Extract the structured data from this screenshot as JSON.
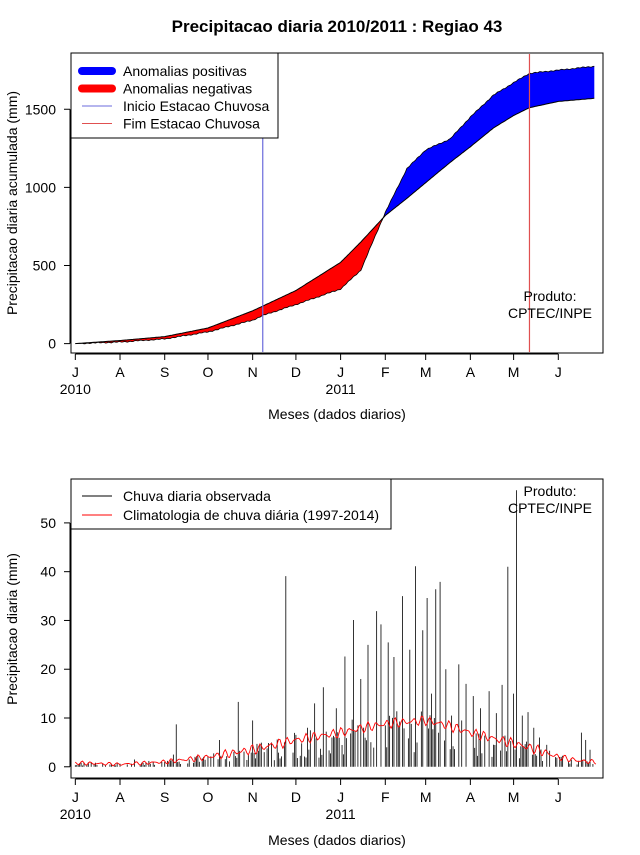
{
  "page_title": "Precipitacao diaria 2010/2011 : Regiao 43",
  "colors": {
    "positive": "#0000ff",
    "negative": "#ff0000",
    "start_line": "#6b6bdc",
    "end_line": "#e05050",
    "observed": "#000000",
    "climatology": "#ff0000"
  },
  "chart_data": [
    {
      "type": "area",
      "title": "Precipitacao diaria 2010/2011 : Regiao 43",
      "xlabel": "Meses (dados diarios)",
      "ylabel": "Precipitacao diaria acumulada (mm)",
      "xlim_days": [
        -3,
        366
      ],
      "ylim": [
        -60,
        1860
      ],
      "month_ticks": [
        "J",
        "A",
        "S",
        "O",
        "N",
        "D",
        "J",
        "F",
        "M",
        "A",
        "M",
        "J"
      ],
      "year_labels": [
        "2010",
        "2011"
      ],
      "yticks": [
        0,
        500,
        1000,
        1500
      ],
      "legend": [
        {
          "label": "Anomalias positivas",
          "kind": "thick",
          "color_key": "positive"
        },
        {
          "label": "Anomalias negativas",
          "kind": "thick",
          "color_key": "negative"
        },
        {
          "label": "Inicio Estacao Chuvosa",
          "kind": "thin",
          "color_key": "start_line"
        },
        {
          "label": "Fim Estacao Chuvosa",
          "kind": "thin",
          "color_key": "end_line"
        }
      ],
      "annotation": [
        "Produto:",
        "CPTEC/INPE"
      ],
      "season_start_day": 130,
      "season_end_day": 315,
      "climatology_cumulative": [
        {
          "day": 0,
          "value": 0
        },
        {
          "day": 31,
          "value": 20
        },
        {
          "day": 62,
          "value": 45
        },
        {
          "day": 92,
          "value": 100
        },
        {
          "day": 123,
          "value": 210
        },
        {
          "day": 153,
          "value": 340
        },
        {
          "day": 184,
          "value": 520
        },
        {
          "day": 198,
          "value": 650
        },
        {
          "day": 215,
          "value": 820
        },
        {
          "day": 230,
          "value": 930
        },
        {
          "day": 243,
          "value": 1030
        },
        {
          "day": 260,
          "value": 1160
        },
        {
          "day": 274,
          "value": 1260
        },
        {
          "day": 290,
          "value": 1380
        },
        {
          "day": 304,
          "value": 1460
        },
        {
          "day": 315,
          "value": 1510
        },
        {
          "day": 335,
          "value": 1550
        },
        {
          "day": 360,
          "value": 1570
        }
      ],
      "observed_cumulative": [
        {
          "day": 0,
          "value": 0
        },
        {
          "day": 31,
          "value": 10
        },
        {
          "day": 62,
          "value": 30
        },
        {
          "day": 92,
          "value": 75
        },
        {
          "day": 123,
          "value": 150
        },
        {
          "day": 130,
          "value": 180
        },
        {
          "day": 153,
          "value": 250
        },
        {
          "day": 184,
          "value": 350
        },
        {
          "day": 198,
          "value": 470
        },
        {
          "day": 215,
          "value": 840
        },
        {
          "day": 230,
          "value": 1120
        },
        {
          "day": 243,
          "value": 1240
        },
        {
          "day": 260,
          "value": 1310
        },
        {
          "day": 274,
          "value": 1450
        },
        {
          "day": 290,
          "value": 1590
        },
        {
          "day": 304,
          "value": 1670
        },
        {
          "day": 315,
          "value": 1730
        },
        {
          "day": 335,
          "value": 1750
        },
        {
          "day": 360,
          "value": 1775
        }
      ]
    },
    {
      "type": "bar",
      "xlabel": "Meses (dados diarios)",
      "ylabel": "Precipitacao diaria (mm)",
      "xlim_days": [
        -3,
        366
      ],
      "ylim": [
        -2.3,
        59
      ],
      "month_ticks": [
        "J",
        "A",
        "S",
        "O",
        "N",
        "D",
        "J",
        "F",
        "M",
        "A",
        "M",
        "J"
      ],
      "year_labels": [
        "2010",
        "2011"
      ],
      "yticks": [
        0,
        10,
        20,
        30,
        40,
        50
      ],
      "legend": [
        {
          "label": "Chuva diaria observada",
          "color_key": "observed"
        },
        {
          "label": "Climatologia de chuva diária (1997-2014)",
          "color_key": "climatology"
        }
      ],
      "annotation": [
        "Produto:",
        "CPTEC/INPE"
      ],
      "daily_peaks": [
        {
          "day": 41,
          "value": 1.5
        },
        {
          "day": 51,
          "value": 1.2
        },
        {
          "day": 68,
          "value": 2.5
        },
        {
          "day": 70,
          "value": 8.7
        },
        {
          "day": 100,
          "value": 5.5
        },
        {
          "day": 113,
          "value": 13.3
        },
        {
          "day": 123,
          "value": 9.5
        },
        {
          "day": 131,
          "value": 3.0
        },
        {
          "day": 146,
          "value": 39.1
        },
        {
          "day": 161,
          "value": 8.0
        },
        {
          "day": 166,
          "value": 13.0
        },
        {
          "day": 172,
          "value": 16.3
        },
        {
          "day": 181,
          "value": 12.0
        },
        {
          "day": 187,
          "value": 22.6
        },
        {
          "day": 193,
          "value": 30.1
        },
        {
          "day": 198,
          "value": 18.0
        },
        {
          "day": 203,
          "value": 25.0
        },
        {
          "day": 209,
          "value": 31.9
        },
        {
          "day": 212,
          "value": 29.2
        },
        {
          "day": 217,
          "value": 25.5
        },
        {
          "day": 221,
          "value": 22.5
        },
        {
          "day": 227,
          "value": 35.0
        },
        {
          "day": 232,
          "value": 24.0
        },
        {
          "day": 236,
          "value": 41.1
        },
        {
          "day": 241,
          "value": 28.0
        },
        {
          "day": 244,
          "value": 34.6
        },
        {
          "day": 247,
          "value": 15.0
        },
        {
          "day": 250,
          "value": 36.4
        },
        {
          "day": 253,
          "value": 37.9
        },
        {
          "day": 257,
          "value": 20.0
        },
        {
          "day": 261,
          "value": 10.5
        },
        {
          "day": 266,
          "value": 21.0
        },
        {
          "day": 271,
          "value": 17.0
        },
        {
          "day": 276,
          "value": 14.5
        },
        {
          "day": 281,
          "value": 12.0
        },
        {
          "day": 287,
          "value": 15.5
        },
        {
          "day": 292,
          "value": 11.0
        },
        {
          "day": 296,
          "value": 16.8
        },
        {
          "day": 300,
          "value": 41.0
        },
        {
          "day": 304,
          "value": 15.0
        },
        {
          "day": 306,
          "value": 56.7
        },
        {
          "day": 310,
          "value": 10.5
        },
        {
          "day": 314,
          "value": 11.2
        },
        {
          "day": 318,
          "value": 8.0
        },
        {
          "day": 322,
          "value": 6.0
        },
        {
          "day": 327,
          "value": 4.5
        },
        {
          "day": 336,
          "value": 2.0
        },
        {
          "day": 351,
          "value": 7.0
        },
        {
          "day": 354,
          "value": 5.5
        },
        {
          "day": 357,
          "value": 3.5
        }
      ],
      "climatology_daily": [
        {
          "day": 0,
          "value": 0.8
        },
        {
          "day": 31,
          "value": 0.5
        },
        {
          "day": 62,
          "value": 1.0
        },
        {
          "day": 92,
          "value": 2.0
        },
        {
          "day": 123,
          "value": 3.5
        },
        {
          "day": 153,
          "value": 5.5
        },
        {
          "day": 184,
          "value": 7.0
        },
        {
          "day": 200,
          "value": 8.0
        },
        {
          "day": 215,
          "value": 8.8
        },
        {
          "day": 230,
          "value": 9.2
        },
        {
          "day": 243,
          "value": 9.5
        },
        {
          "day": 258,
          "value": 8.5
        },
        {
          "day": 274,
          "value": 7.0
        },
        {
          "day": 290,
          "value": 5.8
        },
        {
          "day": 304,
          "value": 4.8
        },
        {
          "day": 320,
          "value": 3.5
        },
        {
          "day": 335,
          "value": 2.0
        },
        {
          "day": 350,
          "value": 1.2
        },
        {
          "day": 360,
          "value": 1.0
        }
      ]
    }
  ]
}
